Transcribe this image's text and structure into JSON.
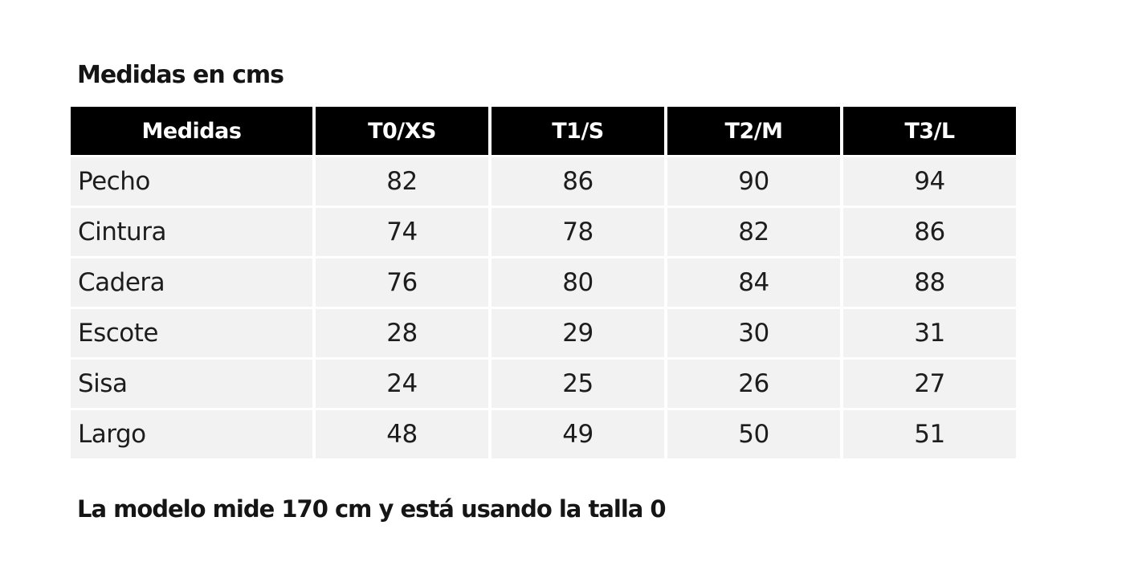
{
  "title": "Medidas en cms",
  "footer_note": "La modelo mide 170 cm y está usando la talla 0",
  "colors": {
    "page_bg": "#ffffff",
    "header_bg": "#000000",
    "header_text": "#ffffff",
    "row_bg": "#f2f2f2",
    "body_text": "#1d1d1d"
  },
  "table": {
    "columns": [
      "Medidas",
      "T0/XS",
      "T1/S",
      "T2/M",
      "T3/L"
    ],
    "rows": [
      {
        "label": "Pecho",
        "values": [
          "82",
          "86",
          "90",
          "94"
        ]
      },
      {
        "label": "Cintura",
        "values": [
          "74",
          "78",
          "82",
          "86"
        ]
      },
      {
        "label": "Cadera",
        "values": [
          "76",
          "80",
          "84",
          "88"
        ]
      },
      {
        "label": "Escote",
        "values": [
          "28",
          "29",
          "30",
          "31"
        ]
      },
      {
        "label": "Sisa",
        "values": [
          "24",
          "25",
          "26",
          "27"
        ]
      },
      {
        "label": "Largo",
        "values": [
          "48",
          "49",
          "50",
          "51"
        ]
      }
    ]
  },
  "chart_data": {
    "type": "table",
    "title": "Medidas en cms",
    "columns": [
      "Medidas",
      "T0/XS",
      "T1/S",
      "T2/M",
      "T3/L"
    ],
    "rows": [
      [
        "Pecho",
        82,
        86,
        90,
        94
      ],
      [
        "Cintura",
        74,
        78,
        82,
        86
      ],
      [
        "Cadera",
        76,
        80,
        84,
        88
      ],
      [
        "Escote",
        28,
        29,
        30,
        31
      ],
      [
        "Sisa",
        24,
        25,
        26,
        27
      ],
      [
        "Largo",
        48,
        49,
        50,
        51
      ]
    ],
    "note": "La modelo mide 170 cm y está usando la talla 0"
  }
}
